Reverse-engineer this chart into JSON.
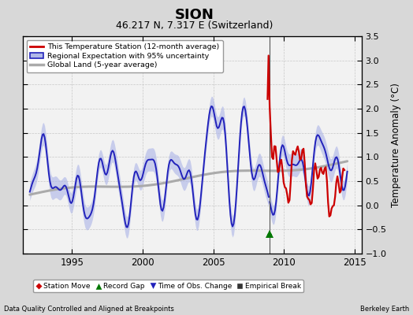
{
  "title": "SION",
  "subtitle": "46.217 N, 7.317 E (Switzerland)",
  "ylabel": "Temperature Anomaly (°C)",
  "xlabel_left": "Data Quality Controlled and Aligned at Breakpoints",
  "xlabel_right": "Berkeley Earth",
  "xlim": [
    1991.5,
    2015.5
  ],
  "ylim": [
    -1.0,
    3.5
  ],
  "yticks": [
    -1,
    -0.5,
    0,
    0.5,
    1,
    1.5,
    2,
    2.5,
    3,
    3.5
  ],
  "xticks": [
    1995,
    2000,
    2005,
    2010,
    2015
  ],
  "bg_color": "#d8d8d8",
  "plot_bg_color": "#f2f2f2",
  "vertical_line_x": 2009.0,
  "green_triangle_x": 2009.0,
  "green_triangle_y": -0.6,
  "legend_labels": [
    "This Temperature Station (12-month average)",
    "Regional Expectation with 95% uncertainty",
    "Global Land (5-year average)"
  ],
  "station_color": "#cc0000",
  "regional_color": "#2222bb",
  "regional_fill_color": "#b0b8e8",
  "global_color": "#aaaaaa",
  "title_fontsize": 13,
  "subtitle_fontsize": 9
}
